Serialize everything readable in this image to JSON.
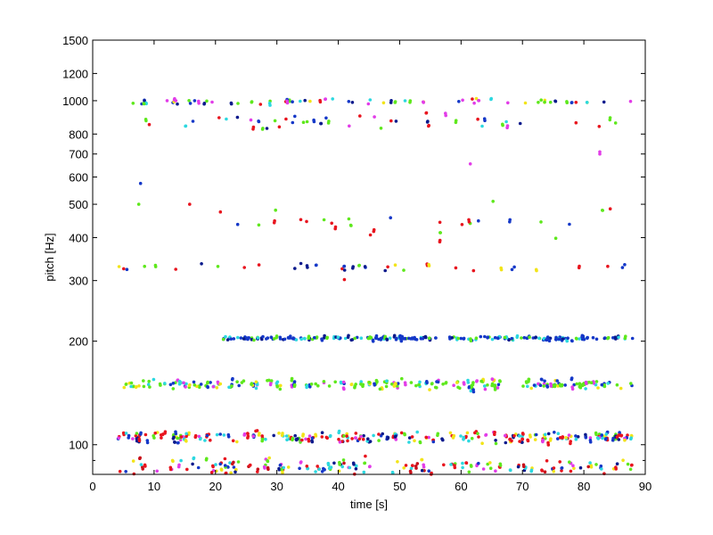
{
  "chart_data": {
    "type": "scatter",
    "title": "",
    "xlabel": "time [s]",
    "ylabel": "pitch [Hz]",
    "xlim": [
      0,
      90
    ],
    "ylim": [
      82,
      1500
    ],
    "yscale": "log",
    "grid": false,
    "xticks": [
      0,
      10,
      20,
      30,
      40,
      50,
      60,
      70,
      80,
      90
    ],
    "yticks": [
      100,
      200,
      300,
      400,
      500,
      600,
      700,
      800,
      1000,
      1200,
      1500
    ],
    "ytick_minor": [
      90
    ],
    "colors": {
      "red": "#e8141e",
      "blue": "#1538c8",
      "green": "#5ee81c",
      "yellow": "#f2e418",
      "magenta": "#e23ce8",
      "cyan": "#2cd8e0",
      "darkblue": "#0a1a8c",
      "darkred": "#c8101a"
    },
    "bands": [
      {
        "name": "band-83Hz",
        "center": 86,
        "spread": 0.035,
        "x_range": [
          4,
          88
        ],
        "count": 170,
        "colors": [
          "red",
          "red",
          "darkred",
          "blue",
          "magenta",
          "cyan",
          "green",
          "yellow",
          "darkblue"
        ]
      },
      {
        "name": "band-104Hz",
        "center": 105,
        "spread": 0.025,
        "x_range": [
          4,
          88
        ],
        "count": 260,
        "colors": [
          "red",
          "magenta",
          "yellow",
          "green",
          "blue",
          "cyan",
          "darkblue",
          "red"
        ]
      },
      {
        "name": "band-150Hz",
        "center": 150,
        "spread": 0.022,
        "x_range": [
          4,
          88
        ],
        "count": 230,
        "colors": [
          "green",
          "green",
          "yellow",
          "cyan",
          "magenta",
          "blue",
          "green"
        ]
      },
      {
        "name": "band-204Hz",
        "center": 204,
        "spread": 0.008,
        "x_range": [
          21,
          88
        ],
        "count": 200,
        "colors": [
          "blue",
          "blue",
          "darkblue",
          "blue",
          "green",
          "cyan"
        ]
      },
      {
        "name": "band-330Hz",
        "center": 330,
        "spread": 0.02,
        "x_range": [
          4,
          88
        ],
        "count": 36,
        "colors": [
          "red",
          "blue",
          "darkblue",
          "green",
          "yellow"
        ]
      },
      {
        "name": "band-430Hz",
        "center": 430,
        "spread": 0.06,
        "x_range": [
          20,
          84
        ],
        "count": 26,
        "colors": [
          "red",
          "red",
          "blue",
          "green"
        ]
      },
      {
        "name": "band-870Hz",
        "center": 870,
        "spread": 0.03,
        "x_range": [
          8,
          88
        ],
        "count": 45,
        "colors": [
          "red",
          "blue",
          "darkblue",
          "magenta",
          "cyan",
          "green"
        ]
      },
      {
        "name": "band-1000Hz",
        "center": 995,
        "spread": 0.012,
        "x_range": [
          6,
          88
        ],
        "count": 70,
        "colors": [
          "red",
          "blue",
          "darkblue",
          "yellow",
          "magenta",
          "cyan",
          "green"
        ]
      }
    ],
    "outliers": [
      {
        "x": 7.5,
        "y": 500,
        "color": "green"
      },
      {
        "x": 7.8,
        "y": 575,
        "color": "blue"
      },
      {
        "x": 15.8,
        "y": 500,
        "color": "red"
      },
      {
        "x": 20.8,
        "y": 475,
        "color": "red"
      },
      {
        "x": 61.5,
        "y": 655,
        "color": "magenta"
      },
      {
        "x": 65.2,
        "y": 510,
        "color": "green"
      },
      {
        "x": 82.6,
        "y": 710,
        "color": "magenta"
      },
      {
        "x": 82.6,
        "y": 700,
        "color": "magenta"
      },
      {
        "x": 84.3,
        "y": 485,
        "color": "red"
      },
      {
        "x": 41.0,
        "y": 302,
        "color": "red"
      },
      {
        "x": 68.3,
        "y": 323,
        "color": "blue"
      }
    ]
  }
}
